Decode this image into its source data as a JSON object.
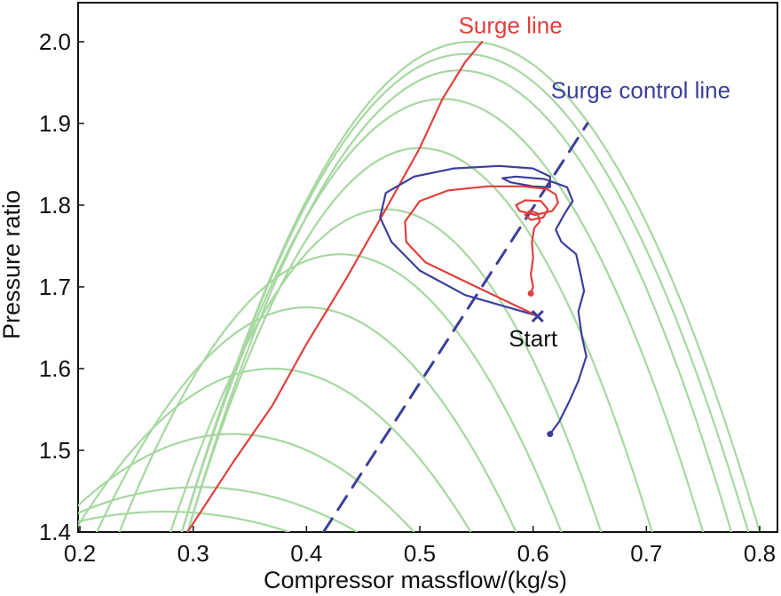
{
  "chart_data": {
    "type": "line",
    "title": "",
    "xlabel": "Compressor massflow/(kg/s)",
    "ylabel": "Pressure ratio",
    "xlim": [
      0.2,
      0.8
    ],
    "ylim": [
      1.4,
      2.0
    ],
    "xticks": [
      "0.2",
      "0.3",
      "0.4",
      "0.5",
      "0.6",
      "0.7",
      "0.8"
    ],
    "yticks": [
      "1.4",
      "1.5",
      "1.6",
      "1.7",
      "1.8",
      "1.9",
      "2.0"
    ],
    "grid": false,
    "colors": {
      "speed_lines": "#a6d8a0",
      "surge_line": "#e0403c",
      "surge_control_line": "#3b3f99",
      "trajectory_red": "#e0403c",
      "trajectory_blue": "#3b3f99",
      "axis": "#111111"
    },
    "speed_lines": [
      {
        "peak": [
          0.275,
          1.425
        ],
        "end_x": 0.385
      },
      {
        "peak": [
          0.305,
          1.455
        ],
        "end_x": 0.445
      },
      {
        "peak": [
          0.335,
          1.52
        ],
        "end_x": 0.495
      },
      {
        "peak": [
          0.37,
          1.6
        ],
        "end_x": 0.545
      },
      {
        "peak": [
          0.4,
          1.675
        ],
        "end_x": 0.585
      },
      {
        "peak": [
          0.43,
          1.74
        ],
        "end_x": 0.625
      },
      {
        "peak": [
          0.47,
          1.795
        ],
        "end_x": 0.66
      },
      {
        "peak": [
          0.5,
          1.87
        ],
        "end_x": 0.705
      },
      {
        "peak": [
          0.52,
          1.93
        ],
        "end_x": 0.75
      },
      {
        "peak": [
          0.535,
          1.965
        ],
        "end_x": 0.775
      },
      {
        "peak": [
          0.54,
          1.985
        ],
        "end_x": 0.79
      },
      {
        "peak": [
          0.545,
          2.0
        ],
        "end_x": 0.8
      }
    ],
    "surge_line": {
      "name": "Surge line",
      "x": [
        0.295,
        0.335,
        0.37,
        0.4,
        0.435,
        0.47,
        0.5,
        0.52,
        0.54,
        0.555
      ],
      "y": [
        1.4,
        1.485,
        1.555,
        1.63,
        1.71,
        1.795,
        1.87,
        1.93,
        1.975,
        2.0
      ]
    },
    "surge_control_line": {
      "name": "Surge control line",
      "x": [
        0.415,
        0.648
      ],
      "y": [
        1.4,
        1.9
      ]
    },
    "trajectory_red": {
      "x": [
        0.603,
        0.55,
        0.505,
        0.488,
        0.487,
        0.5,
        0.525,
        0.56,
        0.59,
        0.612,
        0.62,
        0.622,
        0.617,
        0.602,
        0.588,
        0.585,
        0.593,
        0.607,
        0.613,
        0.609,
        0.598,
        0.593,
        0.597,
        0.604,
        0.606,
        0.601,
        0.599,
        0.6,
        0.598,
        0.6,
        0.598
      ],
      "y": [
        1.665,
        1.7,
        1.73,
        1.755,
        1.78,
        1.805,
        1.818,
        1.823,
        1.823,
        1.82,
        1.813,
        1.803,
        1.793,
        1.788,
        1.793,
        1.8,
        1.806,
        1.805,
        1.795,
        1.785,
        1.782,
        1.788,
        1.793,
        1.79,
        1.78,
        1.772,
        1.755,
        1.735,
        1.715,
        1.7,
        1.692
      ]
    },
    "trajectory_blue": {
      "x": [
        0.603,
        0.54,
        0.5,
        0.475,
        0.465,
        0.47,
        0.495,
        0.53,
        0.57,
        0.6,
        0.615,
        0.615,
        0.6,
        0.58,
        0.573,
        0.585,
        0.61,
        0.63,
        0.635,
        0.628,
        0.62,
        0.625,
        0.638,
        0.642,
        0.645,
        0.64,
        0.643,
        0.647,
        0.64,
        0.632,
        0.623,
        0.615
      ],
      "y": [
        1.665,
        1.69,
        1.72,
        1.755,
        1.785,
        1.815,
        1.835,
        1.845,
        1.848,
        1.845,
        1.835,
        1.822,
        1.823,
        1.828,
        1.833,
        1.835,
        1.832,
        1.822,
        1.805,
        1.79,
        1.77,
        1.755,
        1.74,
        1.715,
        1.695,
        1.67,
        1.64,
        1.615,
        1.585,
        1.56,
        1.535,
        1.52
      ]
    },
    "annotations": [
      {
        "text": "Surge line",
        "x": 0.58,
        "y": 2.02,
        "color": "#e0403c"
      },
      {
        "text": "Surge control line",
        "x": 0.695,
        "y": 1.941,
        "color": "#3b3f99"
      },
      {
        "text": "Start",
        "x": 0.6,
        "y": 1.637,
        "color": "#111111"
      }
    ],
    "markers": [
      {
        "name": "start-marker",
        "x": 0.604,
        "y": 1.664,
        "shape": "x",
        "color": "#3b3f99"
      },
      {
        "name": "red-trajectory-end",
        "x": 0.598,
        "y": 1.692,
        "shape": "dot",
        "color": "#e0403c"
      },
      {
        "name": "blue-trajectory-end",
        "x": 0.615,
        "y": 1.52,
        "shape": "dot",
        "color": "#3b3f99"
      }
    ]
  }
}
